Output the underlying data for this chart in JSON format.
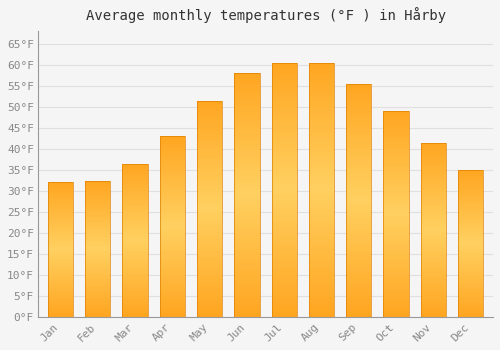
{
  "title": "Average monthly temperatures (°F ) in Hårby",
  "months": [
    "Jan",
    "Feb",
    "Mar",
    "Apr",
    "May",
    "Jun",
    "Jul",
    "Aug",
    "Sep",
    "Oct",
    "Nov",
    "Dec"
  ],
  "values": [
    32.2,
    32.5,
    36.5,
    43.0,
    51.5,
    58.0,
    60.5,
    60.5,
    55.5,
    49.0,
    41.5,
    35.0
  ],
  "bar_color": "#FFA500",
  "bar_edge_color": "#CC8800",
  "background_color": "#f5f5f5",
  "grid_color": "#e0e0e0",
  "ytick_labels": [
    "0°F",
    "5°F",
    "10°F",
    "15°F",
    "20°F",
    "25°F",
    "30°F",
    "35°F",
    "40°F",
    "45°F",
    "50°F",
    "55°F",
    "60°F",
    "65°F"
  ],
  "ytick_values": [
    0,
    5,
    10,
    15,
    20,
    25,
    30,
    35,
    40,
    45,
    50,
    55,
    60,
    65
  ],
  "ylim": [
    0,
    68
  ],
  "title_fontsize": 10,
  "tick_fontsize": 8,
  "tick_color": "#888888",
  "spine_color": "#999999"
}
